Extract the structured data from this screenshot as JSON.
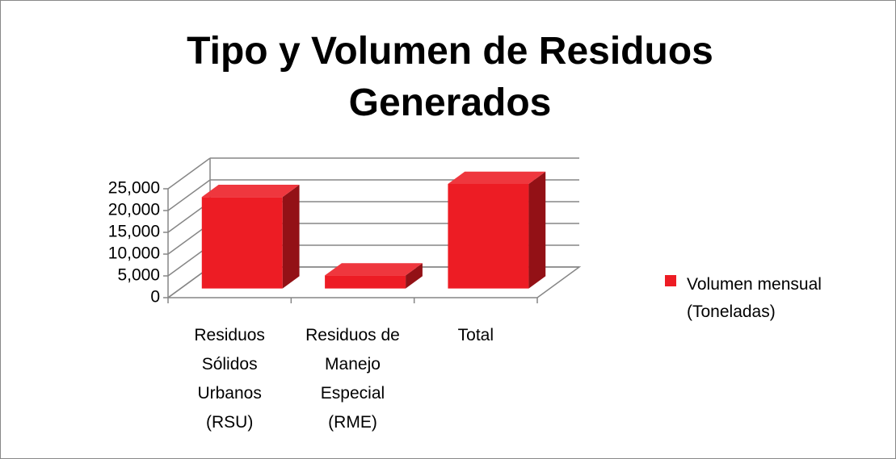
{
  "chart_data": {
    "type": "bar3d",
    "title": "Tipo y Volumen de Residuos Generados",
    "categories": [
      "Residuos Sólidos Urbanos (RSU)",
      "Residuos de Manejo Especial (RME)",
      "Total"
    ],
    "series": [
      {
        "name": "Volumen mensual (Toneladas)",
        "color": "#ed1c24",
        "values": [
          21000,
          3000,
          24000
        ]
      }
    ],
    "ylim": [
      0,
      25000
    ],
    "yticks": [
      0,
      {
        "value": 5000,
        "label": "5,000"
      },
      {
        "value": 10000,
        "label": "10,000"
      },
      {
        "value": 15000,
        "label": "15,000"
      },
      {
        "value": 20000,
        "label": "20,000"
      },
      {
        "value": 25000,
        "label": "25,000"
      }
    ],
    "grid": true,
    "legend": "right"
  }
}
